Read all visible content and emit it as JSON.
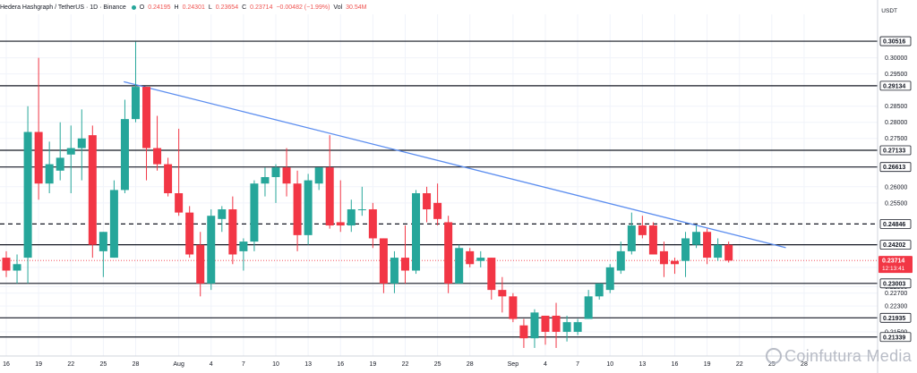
{
  "header": {
    "symbol": "Hedera Hashgraph / TetherUS · 1D · Binance",
    "o_label": "O",
    "o_value": "0.24195",
    "h_label": "H",
    "h_value": "0.24301",
    "l_label": "L",
    "l_value": "0.23654",
    "c_label": "C",
    "c_value": "0.23714",
    "change": "−0.00482 (−1.99%)",
    "vol_label": "Vol",
    "vol_value": "30.54M"
  },
  "currency": "USDT",
  "watermark": "Coinfutura Media",
  "colors": {
    "up": "#26a69a",
    "down": "#f23645",
    "trendline": "#5b8def",
    "level": "#131722",
    "current_price_line": "#f23645"
  },
  "chart_data": {
    "type": "candlestick",
    "ylim": [
      0.2075,
      0.3135
    ],
    "price_ticks": [
      "0.30000",
      "0.29500",
      "0.28500",
      "0.28000",
      "0.27500",
      "0.26000",
      "0.25500",
      "0.23500",
      "0.22900",
      "0.22700",
      "0.22300",
      "0.21500"
    ],
    "date_ticks": [
      {
        "i": 0,
        "label": "16"
      },
      {
        "i": 3,
        "label": "19"
      },
      {
        "i": 6,
        "label": "22"
      },
      {
        "i": 9,
        "label": "25"
      },
      {
        "i": 12,
        "label": "28"
      },
      {
        "i": 16,
        "label": "Aug"
      },
      {
        "i": 19,
        "label": "4"
      },
      {
        "i": 22,
        "label": "7"
      },
      {
        "i": 25,
        "label": "10"
      },
      {
        "i": 28,
        "label": "13"
      },
      {
        "i": 31,
        "label": "16"
      },
      {
        "i": 34,
        "label": "19"
      },
      {
        "i": 37,
        "label": "22"
      },
      {
        "i": 40,
        "label": "25"
      },
      {
        "i": 43,
        "label": "28"
      },
      {
        "i": 47,
        "label": "Sep"
      },
      {
        "i": 50,
        "label": "4"
      },
      {
        "i": 53,
        "label": "7"
      },
      {
        "i": 56,
        "label": "10"
      },
      {
        "i": 59,
        "label": "13"
      },
      {
        "i": 62,
        "label": "16"
      },
      {
        "i": 65,
        "label": "19"
      },
      {
        "i": 68,
        "label": "22"
      },
      {
        "i": 71,
        "label": "25"
      },
      {
        "i": 74,
        "label": "28"
      }
    ],
    "levels": [
      {
        "value": 0.30516,
        "label": "0.30516",
        "style": "solid"
      },
      {
        "value": 0.29134,
        "label": "0.29134",
        "style": "solid"
      },
      {
        "value": 0.27133,
        "label": "0.27133",
        "style": "solid"
      },
      {
        "value": 0.26613,
        "label": "0.26613",
        "style": "solid"
      },
      {
        "value": 0.24846,
        "label": "0.24846",
        "style": "dashed"
      },
      {
        "value": 0.24202,
        "label": "0.24202",
        "style": "solid"
      },
      {
        "value": 0.23003,
        "label": "0.23003",
        "style": "solid"
      },
      {
        "value": 0.21935,
        "label": "0.21935",
        "style": "solid"
      },
      {
        "value": 0.21339,
        "label": "0.21339",
        "style": "solid"
      }
    ],
    "current_price": {
      "value": 0.23714,
      "label": "0.23714",
      "countdown": "12:13:41"
    },
    "trendline": [
      {
        "i": 10.9,
        "price": 0.2926
      },
      {
        "i": 72.3,
        "price": 0.2411
      }
    ],
    "candles": [
      {
        "o": 0.238,
        "h": 0.24,
        "l": 0.232,
        "c": 0.234
      },
      {
        "o": 0.234,
        "h": 0.239,
        "l": 0.23,
        "c": 0.236
      },
      {
        "o": 0.238,
        "h": 0.285,
        "l": 0.23,
        "c": 0.277
      },
      {
        "o": 0.277,
        "h": 0.3,
        "l": 0.256,
        "c": 0.261
      },
      {
        "o": 0.261,
        "h": 0.274,
        "l": 0.258,
        "c": 0.267
      },
      {
        "o": 0.265,
        "h": 0.28,
        "l": 0.262,
        "c": 0.269
      },
      {
        "o": 0.27,
        "h": 0.279,
        "l": 0.258,
        "c": 0.272
      },
      {
        "o": 0.272,
        "h": 0.284,
        "l": 0.262,
        "c": 0.275
      },
      {
        "o": 0.276,
        "h": 0.279,
        "l": 0.238,
        "c": 0.242
      },
      {
        "o": 0.24,
        "h": 0.246,
        "l": 0.232,
        "c": 0.246
      },
      {
        "o": 0.238,
        "h": 0.262,
        "l": 0.238,
        "c": 0.259
      },
      {
        "o": 0.259,
        "h": 0.287,
        "l": 0.258,
        "c": 0.281
      },
      {
        "o": 0.281,
        "h": 0.305,
        "l": 0.28,
        "c": 0.291
      },
      {
        "o": 0.291,
        "h": 0.291,
        "l": 0.262,
        "c": 0.272
      },
      {
        "o": 0.272,
        "h": 0.282,
        "l": 0.265,
        "c": 0.267
      },
      {
        "o": 0.267,
        "h": 0.269,
        "l": 0.257,
        "c": 0.258
      },
      {
        "o": 0.258,
        "h": 0.278,
        "l": 0.251,
        "c": 0.252
      },
      {
        "o": 0.252,
        "h": 0.254,
        "l": 0.238,
        "c": 0.239
      },
      {
        "o": 0.242,
        "h": 0.246,
        "l": 0.226,
        "c": 0.23
      },
      {
        "o": 0.23,
        "h": 0.253,
        "l": 0.228,
        "c": 0.251
      },
      {
        "o": 0.25,
        "h": 0.254,
        "l": 0.246,
        "c": 0.253
      },
      {
        "o": 0.253,
        "h": 0.257,
        "l": 0.236,
        "c": 0.239
      },
      {
        "o": 0.24,
        "h": 0.244,
        "l": 0.234,
        "c": 0.243
      },
      {
        "o": 0.243,
        "h": 0.262,
        "l": 0.24,
        "c": 0.261
      },
      {
        "o": 0.261,
        "h": 0.266,
        "l": 0.257,
        "c": 0.263
      },
      {
        "o": 0.263,
        "h": 0.267,
        "l": 0.255,
        "c": 0.266
      },
      {
        "o": 0.266,
        "h": 0.272,
        "l": 0.257,
        "c": 0.261
      },
      {
        "o": 0.261,
        "h": 0.265,
        "l": 0.24,
        "c": 0.245
      },
      {
        "o": 0.245,
        "h": 0.264,
        "l": 0.242,
        "c": 0.262
      },
      {
        "o": 0.261,
        "h": 0.266,
        "l": 0.259,
        "c": 0.266
      },
      {
        "o": 0.266,
        "h": 0.276,
        "l": 0.247,
        "c": 0.248
      },
      {
        "o": 0.249,
        "h": 0.262,
        "l": 0.246,
        "c": 0.248
      },
      {
        "o": 0.248,
        "h": 0.256,
        "l": 0.246,
        "c": 0.253
      },
      {
        "o": 0.253,
        "h": 0.26,
        "l": 0.251,
        "c": 0.253
      },
      {
        "o": 0.253,
        "h": 0.255,
        "l": 0.241,
        "c": 0.244
      },
      {
        "o": 0.244,
        "h": 0.244,
        "l": 0.227,
        "c": 0.23
      },
      {
        "o": 0.23,
        "h": 0.24,
        "l": 0.227,
        "c": 0.238
      },
      {
        "o": 0.238,
        "h": 0.248,
        "l": 0.23,
        "c": 0.234
      },
      {
        "o": 0.234,
        "h": 0.259,
        "l": 0.233,
        "c": 0.258
      },
      {
        "o": 0.258,
        "h": 0.26,
        "l": 0.249,
        "c": 0.253
      },
      {
        "o": 0.255,
        "h": 0.261,
        "l": 0.248,
        "c": 0.25
      },
      {
        "o": 0.249,
        "h": 0.251,
        "l": 0.227,
        "c": 0.23
      },
      {
        "o": 0.23,
        "h": 0.242,
        "l": 0.23,
        "c": 0.241
      },
      {
        "o": 0.24,
        "h": 0.241,
        "l": 0.235,
        "c": 0.236
      },
      {
        "o": 0.237,
        "h": 0.24,
        "l": 0.235,
        "c": 0.238
      },
      {
        "o": 0.238,
        "h": 0.238,
        "l": 0.225,
        "c": 0.228
      },
      {
        "o": 0.228,
        "h": 0.232,
        "l": 0.221,
        "c": 0.226
      },
      {
        "o": 0.226,
        "h": 0.227,
        "l": 0.218,
        "c": 0.219
      },
      {
        "o": 0.217,
        "h": 0.219,
        "l": 0.21,
        "c": 0.213
      },
      {
        "o": 0.213,
        "h": 0.222,
        "l": 0.21,
        "c": 0.221
      },
      {
        "o": 0.22,
        "h": 0.22,
        "l": 0.211,
        "c": 0.215
      },
      {
        "o": 0.22,
        "h": 0.224,
        "l": 0.21,
        "c": 0.215
      },
      {
        "o": 0.215,
        "h": 0.22,
        "l": 0.212,
        "c": 0.218
      },
      {
        "o": 0.215,
        "h": 0.219,
        "l": 0.214,
        "c": 0.218
      },
      {
        "o": 0.219,
        "h": 0.228,
        "l": 0.219,
        "c": 0.226
      },
      {
        "o": 0.226,
        "h": 0.23,
        "l": 0.225,
        "c": 0.23
      },
      {
        "o": 0.228,
        "h": 0.236,
        "l": 0.227,
        "c": 0.235
      },
      {
        "o": 0.234,
        "h": 0.243,
        "l": 0.233,
        "c": 0.24
      },
      {
        "o": 0.24,
        "h": 0.252,
        "l": 0.239,
        "c": 0.248
      },
      {
        "o": 0.248,
        "h": 0.251,
        "l": 0.244,
        "c": 0.245
      },
      {
        "o": 0.248,
        "h": 0.249,
        "l": 0.239,
        "c": 0.239
      },
      {
        "o": 0.24,
        "h": 0.243,
        "l": 0.232,
        "c": 0.236
      },
      {
        "o": 0.237,
        "h": 0.238,
        "l": 0.233,
        "c": 0.236
      },
      {
        "o": 0.237,
        "h": 0.246,
        "l": 0.232,
        "c": 0.244
      },
      {
        "o": 0.242,
        "h": 0.248,
        "l": 0.241,
        "c": 0.246
      },
      {
        "o": 0.246,
        "h": 0.247,
        "l": 0.236,
        "c": 0.238
      },
      {
        "o": 0.238,
        "h": 0.244,
        "l": 0.237,
        "c": 0.242
      },
      {
        "o": 0.242,
        "h": 0.243,
        "l": 0.2365,
        "c": 0.2371
      }
    ]
  }
}
